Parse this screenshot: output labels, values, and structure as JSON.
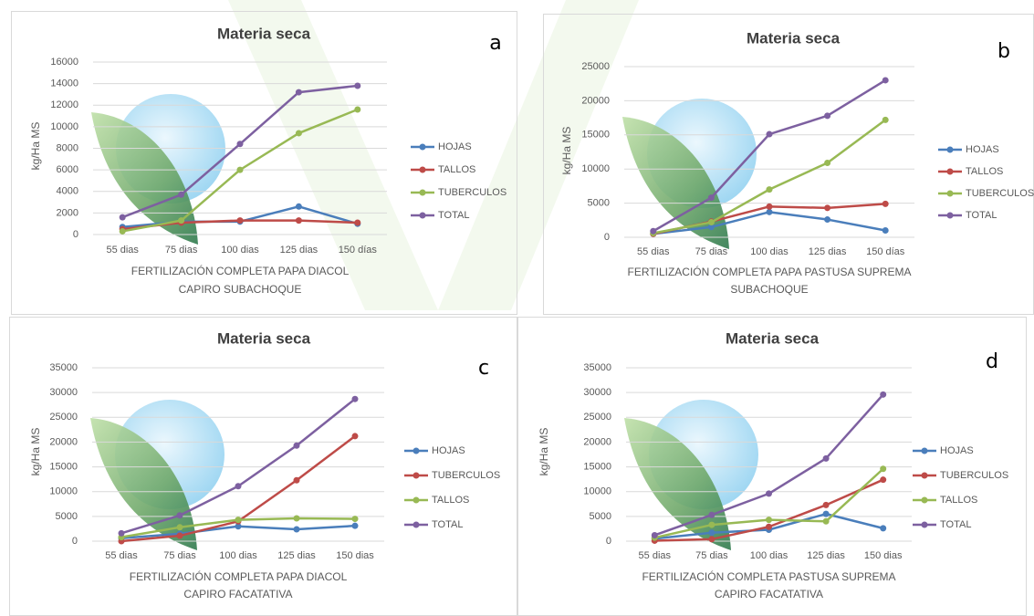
{
  "chart_data": [
    {
      "type": "line",
      "title": "Materia seca",
      "annotation": "a",
      "y_label": "kg/Ha MS",
      "x_label": [
        "FERTILIZACIÓN COMPLETA PAPA DIACOL",
        "CAPIRO SUBACHOQUE"
      ],
      "categories": [
        "55 dias",
        "75 dias",
        "100 dias",
        "125 dias",
        "150 días"
      ],
      "series": [
        {
          "name": "HOJAS",
          "color": "#4a7ebb",
          "values": [
            700,
            1200,
            1200,
            2600,
            1000
          ]
        },
        {
          "name": "TALLOS",
          "color": "#be4b48",
          "values": [
            500,
            1100,
            1300,
            1300,
            1100
          ]
        },
        {
          "name": "TUBERCULOS",
          "color": "#98b954",
          "values": [
            300,
            1300,
            6000,
            9400,
            11600
          ]
        },
        {
          "name": "TOTAL",
          "color": "#7d60a0",
          "values": [
            1600,
            3700,
            8400,
            13200,
            13800
          ]
        }
      ],
      "ylim": [
        0,
        16000
      ],
      "yticks": [
        0,
        2000,
        4000,
        6000,
        8000,
        10000,
        12000,
        14000,
        16000
      ],
      "grid": true,
      "legend": "right"
    },
    {
      "type": "line",
      "title": "Materia seca",
      "annotation": "b",
      "y_label": "kg/Ha MS",
      "x_label": [
        "FERTILIZACIÓN COMPLETA PAPA PASTUSA SUPREMA",
        "SUBACHOQUE"
      ],
      "categories": [
        "55 dias",
        "75 dias",
        "100 dias",
        "125 dias",
        "150 días"
      ],
      "series": [
        {
          "name": "HOJAS",
          "color": "#4a7ebb",
          "values": [
            500,
            1500,
            3700,
            2600,
            1000
          ]
        },
        {
          "name": "TALLOS",
          "color": "#be4b48",
          "values": [
            500,
            2300,
            4500,
            4300,
            4900
          ]
        },
        {
          "name": "TUBERCULOS",
          "color": "#98b954",
          "values": [
            600,
            2200,
            7000,
            10900,
            17200
          ]
        },
        {
          "name": "TOTAL",
          "color": "#7d60a0",
          "values": [
            900,
            5800,
            15100,
            17800,
            23000
          ]
        }
      ],
      "ylim": [
        0,
        25000
      ],
      "yticks": [
        0,
        5000,
        10000,
        15000,
        20000,
        25000
      ],
      "grid": true,
      "legend": "right"
    },
    {
      "type": "line",
      "title": "Materia seca",
      "annotation": "c",
      "y_label": "kg/Ha MS",
      "x_label": [
        "FERTILIZACIÓN COMPLETA PAPA DIACOL",
        "CAPIRO FACATATIVA"
      ],
      "categories": [
        "55 dias",
        "75 dias",
        "100 dias",
        "125 dias",
        "150 dias"
      ],
      "series": [
        {
          "name": "HOJAS",
          "color": "#4a7ebb",
          "values": [
            600,
            1500,
            3000,
            2400,
            3100
          ]
        },
        {
          "name": "TUBERCULOS",
          "color": "#be4b48",
          "values": [
            0,
            1100,
            4000,
            12300,
            21200
          ]
        },
        {
          "name": "TALLOS",
          "color": "#98b954",
          "values": [
            800,
            2800,
            4300,
            4600,
            4500
          ]
        },
        {
          "name": "TOTAL",
          "color": "#7d60a0",
          "values": [
            1600,
            5200,
            11100,
            19300,
            28700
          ]
        }
      ],
      "ylim": [
        0,
        35000
      ],
      "yticks": [
        0,
        5000,
        10000,
        15000,
        20000,
        25000,
        30000,
        35000
      ],
      "grid": true,
      "legend": "right"
    },
    {
      "type": "line",
      "title": "Materia seca",
      "annotation": "d",
      "y_label": "kg/Ha MS",
      "x_label": [
        "FERTILIZACIÓN COMPLETA PASTUSA SUPREMA",
        "CAPIRO FACATATIVA"
      ],
      "categories": [
        "55 dias",
        "75 dias",
        "100 dias",
        "125 dias",
        "150 dias"
      ],
      "series": [
        {
          "name": "HOJAS",
          "color": "#4a7ebb",
          "values": [
            500,
            1700,
            2300,
            5500,
            2600
          ]
        },
        {
          "name": "TUBERCULOS",
          "color": "#be4b48",
          "values": [
            100,
            400,
            2900,
            7300,
            12400
          ]
        },
        {
          "name": "TALLOS",
          "color": "#98b954",
          "values": [
            700,
            3300,
            4300,
            4000,
            14600
          ]
        },
        {
          "name": "TOTAL",
          "color": "#7d60a0",
          "values": [
            1200,
            5300,
            9600,
            16700,
            29600
          ]
        }
      ],
      "ylim": [
        0,
        35000
      ],
      "yticks": [
        0,
        5000,
        10000,
        15000,
        20000,
        25000,
        30000,
        35000
      ],
      "grid": true,
      "legend": "right"
    }
  ]
}
